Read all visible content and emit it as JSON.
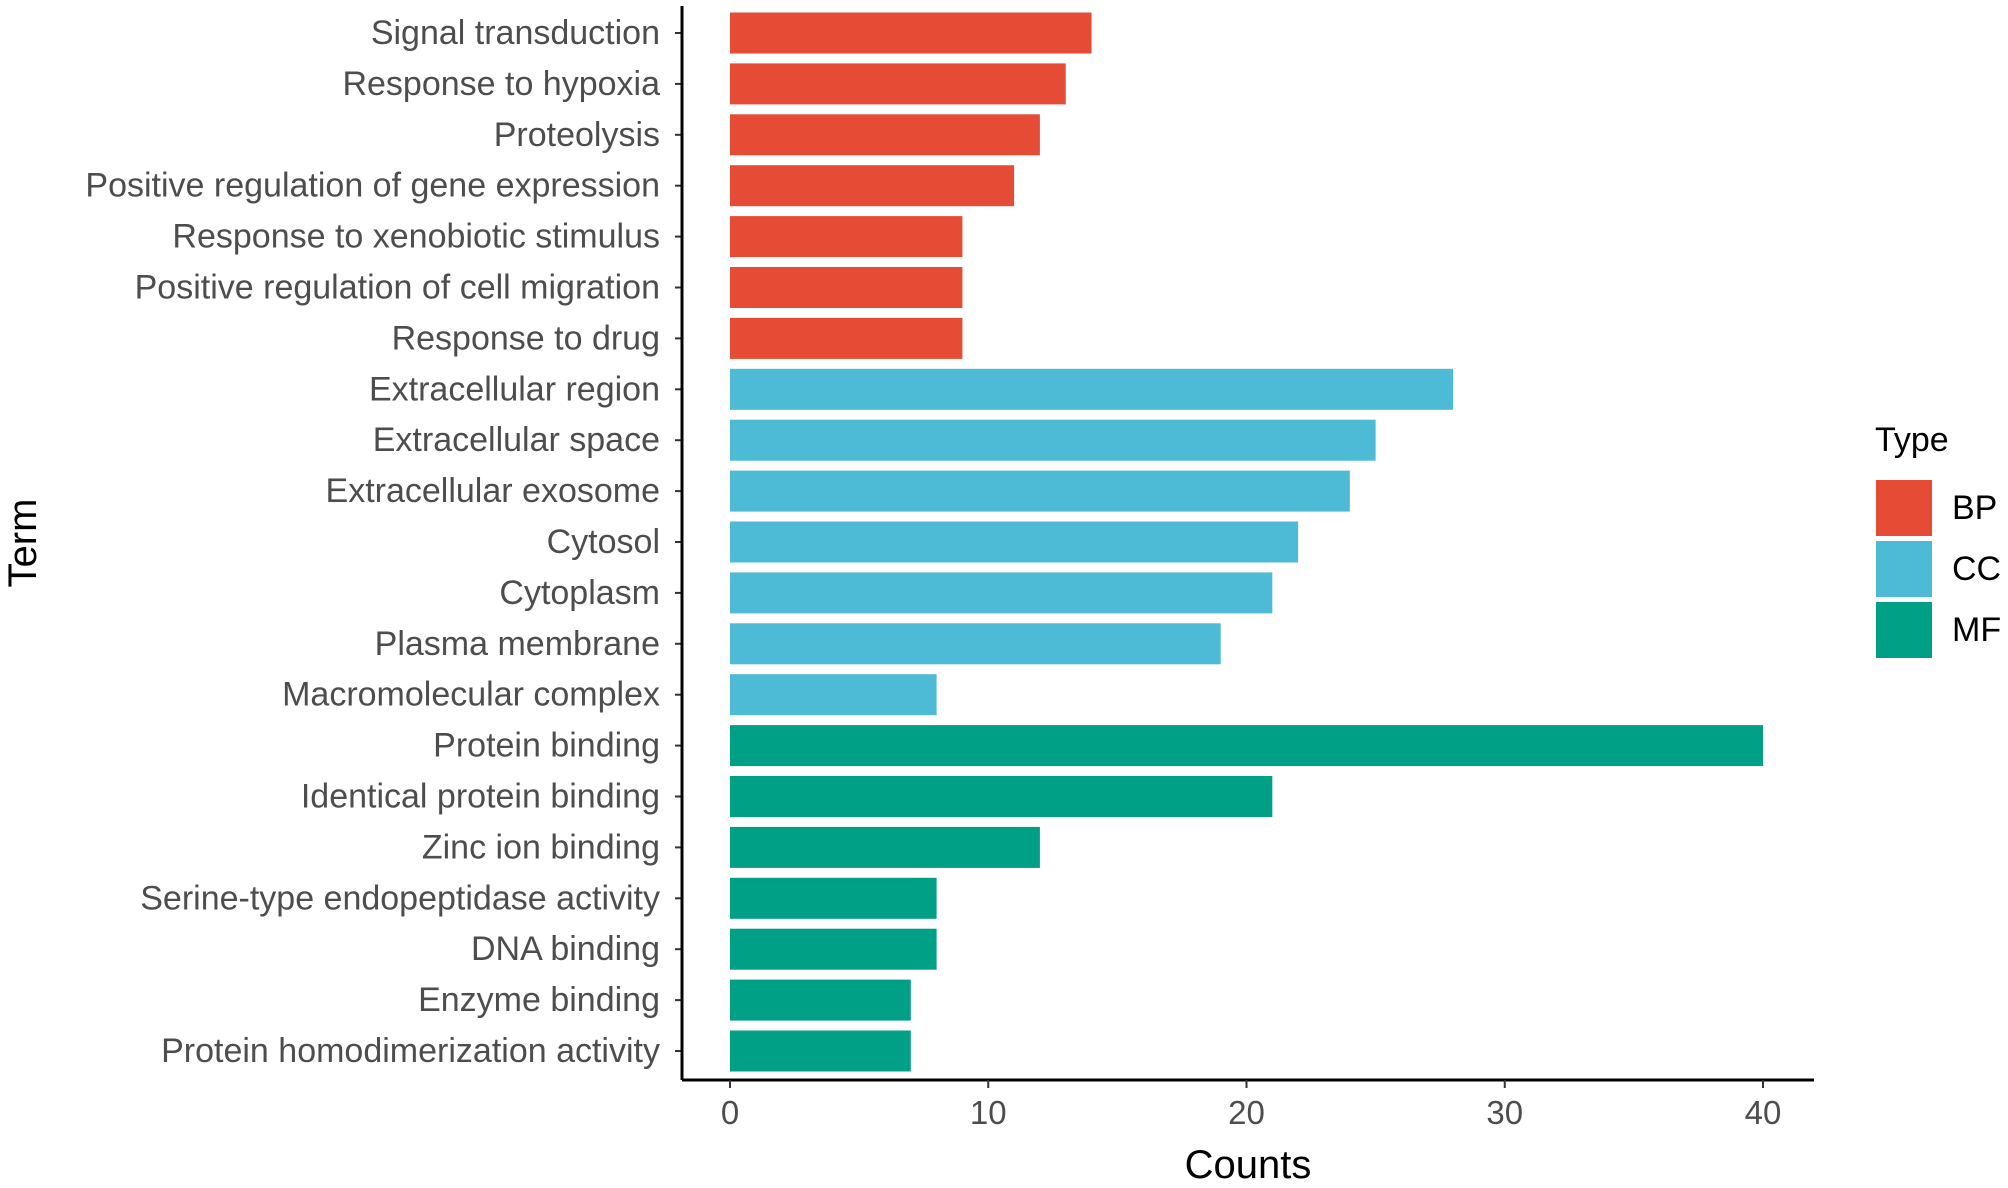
{
  "chart_data": {
    "type": "bar",
    "orientation": "horizontal",
    "xlabel": "Counts",
    "ylabel": "Term",
    "xlim": [
      -1.9,
      42
    ],
    "xticks": [
      0,
      10,
      20,
      30,
      40
    ],
    "xtick_labels": [
      "0",
      "10",
      "20",
      "30",
      "40"
    ],
    "grid": false,
    "legend": {
      "title": "Type",
      "placement": "right",
      "entries": [
        {
          "key": "BP",
          "label": "BP",
          "color": "#E64B35"
        },
        {
          "key": "CC",
          "label": "CC",
          "color": "#4DBBD5"
        },
        {
          "key": "MF",
          "label": "MF",
          "color": "#00A087"
        }
      ]
    },
    "bars": [
      {
        "term": "Signal transduction",
        "value": 14,
        "type": "BP"
      },
      {
        "term": "Response to hypoxia",
        "value": 13,
        "type": "BP"
      },
      {
        "term": "Proteolysis",
        "value": 12,
        "type": "BP"
      },
      {
        "term": "Positive regulation of gene expression",
        "value": 11,
        "type": "BP"
      },
      {
        "term": "Response to xenobiotic stimulus",
        "value": 9,
        "type": "BP"
      },
      {
        "term": "Positive regulation of cell migration",
        "value": 9,
        "type": "BP"
      },
      {
        "term": "Response to drug",
        "value": 9,
        "type": "BP"
      },
      {
        "term": "Extracellular region",
        "value": 28,
        "type": "CC"
      },
      {
        "term": "Extracellular space",
        "value": 25,
        "type": "CC"
      },
      {
        "term": "Extracellular exosome",
        "value": 24,
        "type": "CC"
      },
      {
        "term": "Cytosol",
        "value": 22,
        "type": "CC"
      },
      {
        "term": "Cytoplasm",
        "value": 21,
        "type": "CC"
      },
      {
        "term": "Plasma membrane",
        "value": 19,
        "type": "CC"
      },
      {
        "term": "Macromolecular complex",
        "value": 8,
        "type": "CC"
      },
      {
        "term": "Protein binding",
        "value": 40,
        "type": "MF"
      },
      {
        "term": "Identical protein binding",
        "value": 21,
        "type": "MF"
      },
      {
        "term": "Zinc ion binding",
        "value": 12,
        "type": "MF"
      },
      {
        "term": "Serine-type endopeptidase activity",
        "value": 8,
        "type": "MF"
      },
      {
        "term": "DNA binding",
        "value": 8,
        "type": "MF"
      },
      {
        "term": "Enzyme binding",
        "value": 7,
        "type": "MF"
      },
      {
        "term": "Protein homodimerization activity",
        "value": 7,
        "type": "MF"
      }
    ]
  }
}
